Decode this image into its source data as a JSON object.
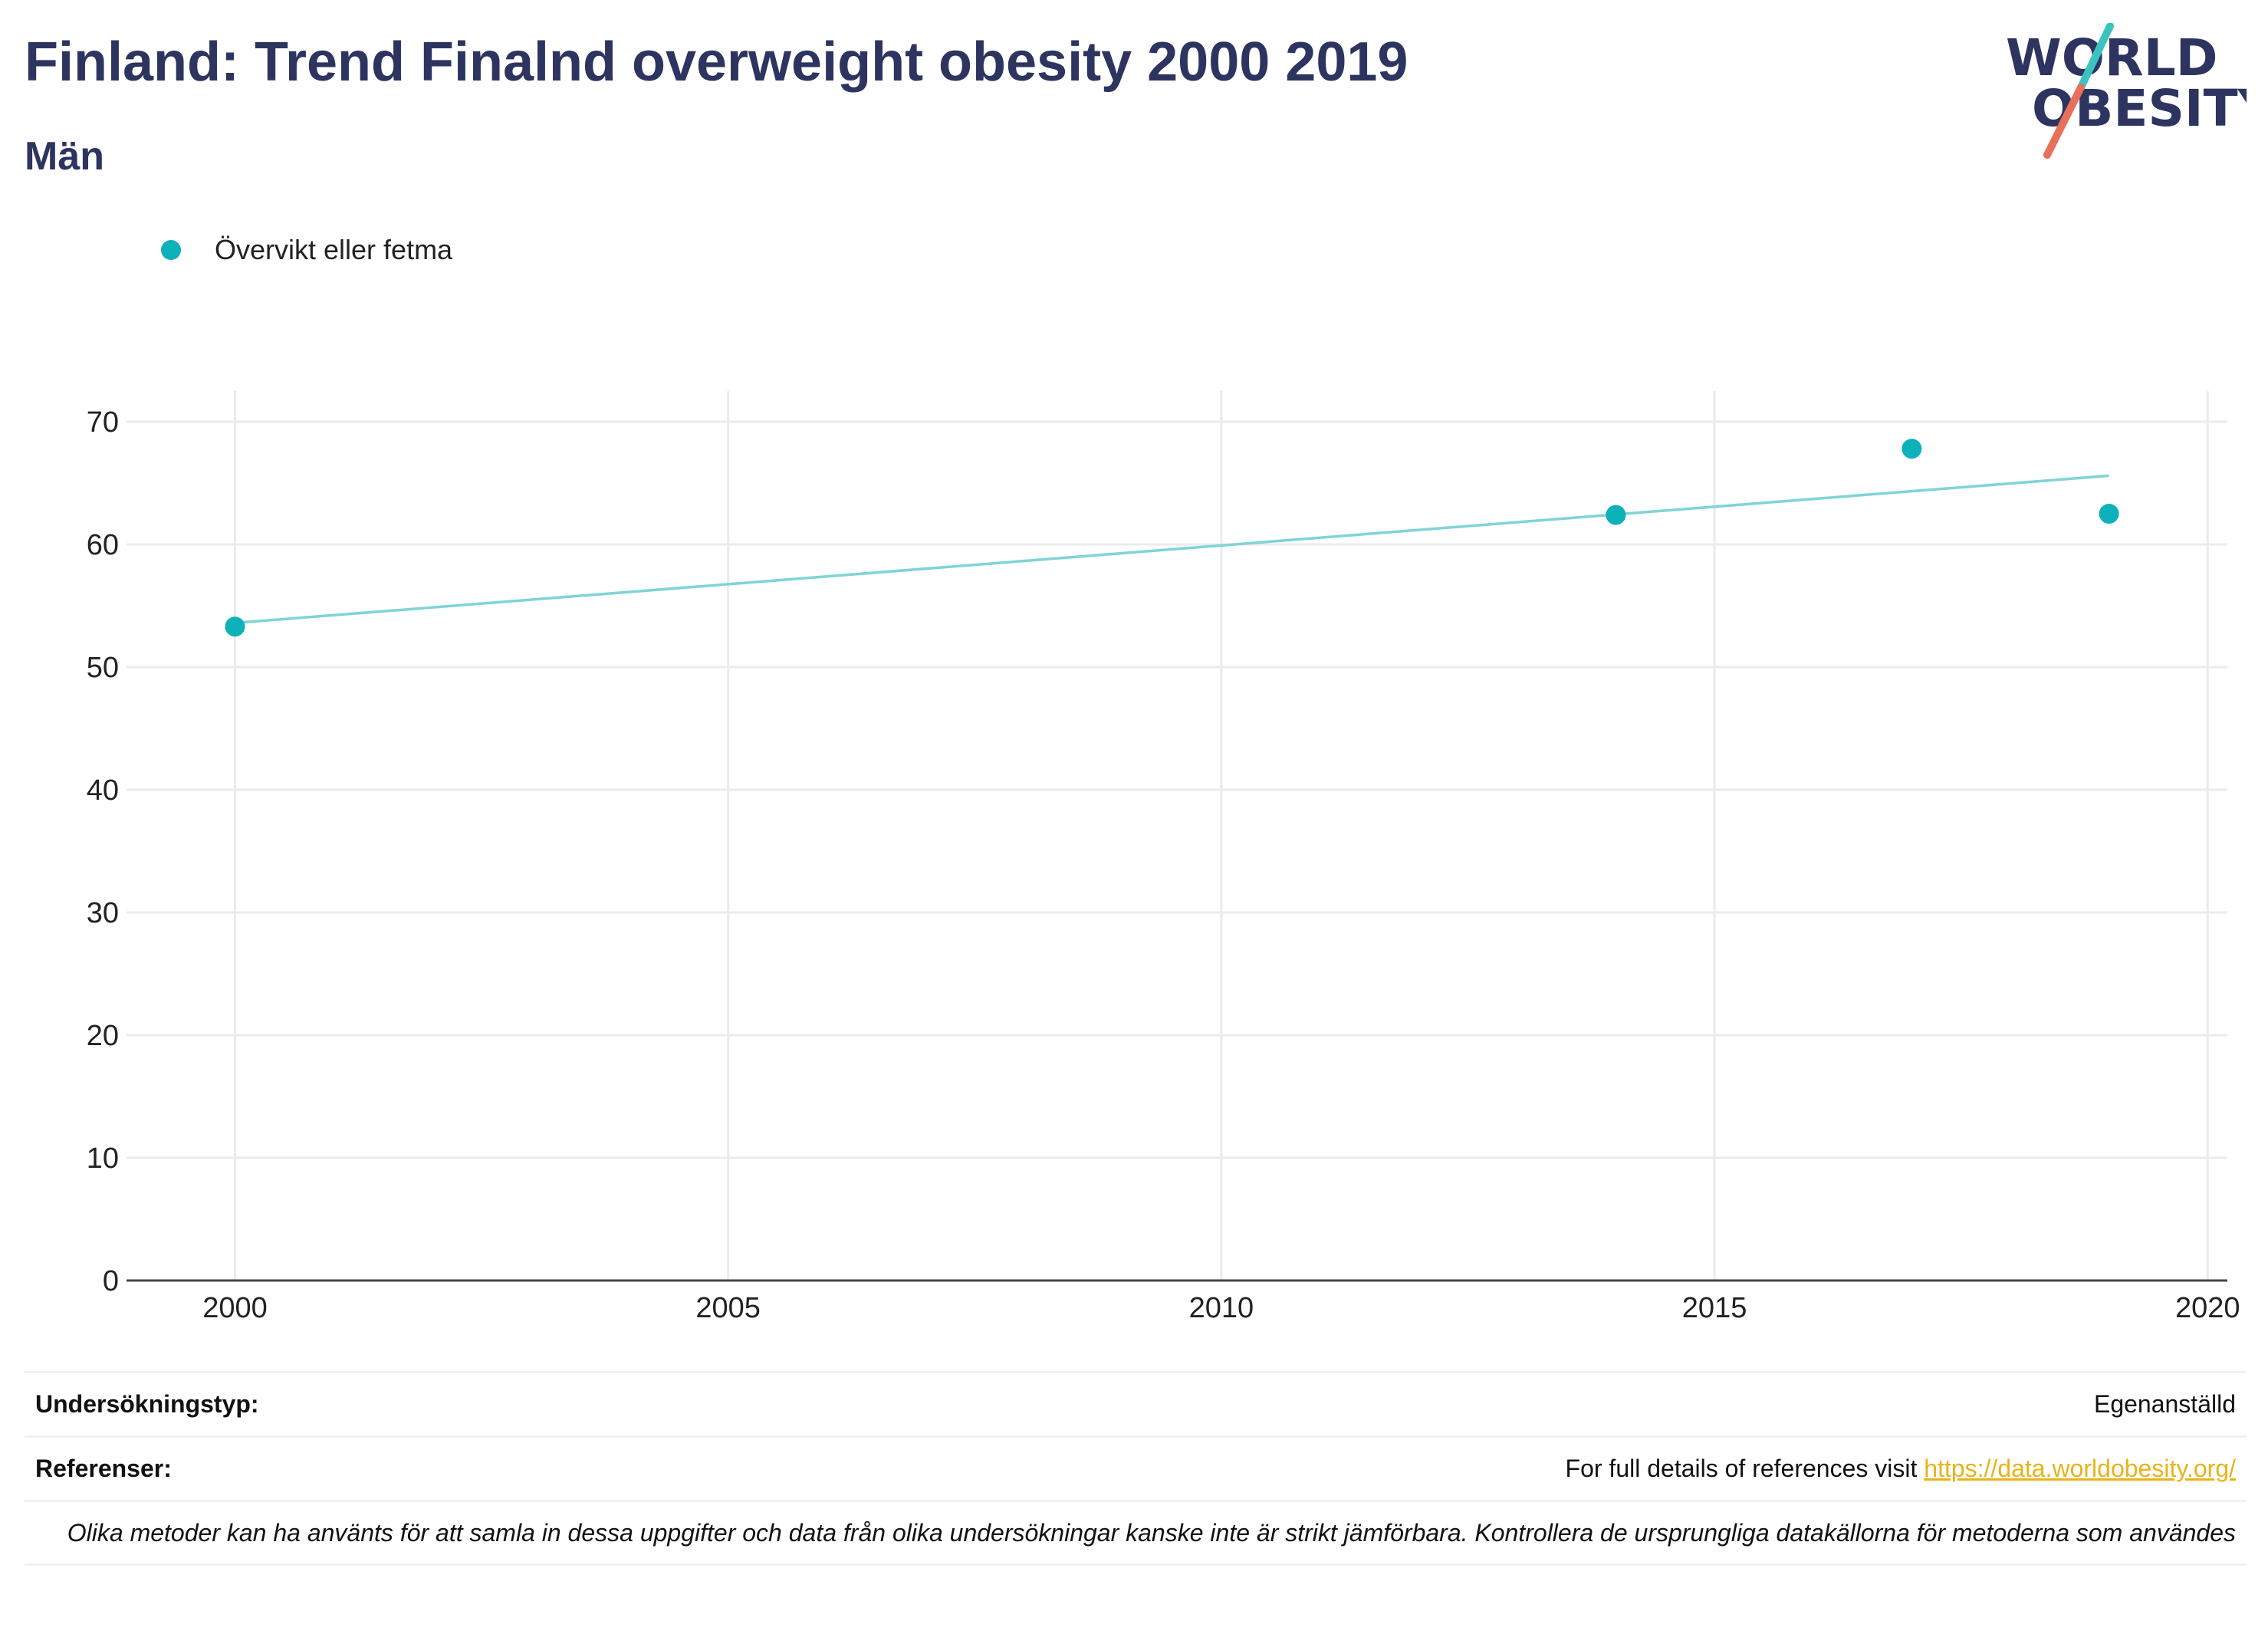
{
  "header": {
    "title": "Finland: Trend Finalnd overweight obesity 2000 2019",
    "subtitle": "Män"
  },
  "logo": {
    "line1": "WORLD",
    "line2": "OBESITY",
    "text_color": "#2d3460",
    "slash_top_color": "#3cc3c0",
    "slash_bottom_color": "#e8705a"
  },
  "legend": {
    "items": [
      {
        "label": "Övervikt eller fetma",
        "color": "#0db1b9"
      }
    ]
  },
  "chart_data": {
    "type": "scatter",
    "title": "Finland: Trend Finalnd overweight obesity 2000 2019",
    "subtitle": "Män",
    "xlabel": "",
    "ylabel": "",
    "xlim": [
      1998.9,
      2020.2
    ],
    "ylim": [
      0,
      72.5
    ],
    "xticks": [
      2000,
      2005,
      2010,
      2015,
      2020
    ],
    "yticks": [
      0,
      10,
      20,
      30,
      40,
      50,
      60,
      70
    ],
    "grid": true,
    "legend_position": "top-left",
    "series": [
      {
        "name": "Övervikt eller fetma",
        "color": "#0db1b9",
        "points": [
          {
            "x": 2000,
            "y": 53.3
          },
          {
            "x": 2014,
            "y": 62.4
          },
          {
            "x": 2017,
            "y": 67.8
          },
          {
            "x": 2019,
            "y": 62.5
          }
        ]
      }
    ],
    "trendline": {
      "color": "#7fd4d6",
      "x": [
        2000,
        2019
      ],
      "y": [
        53.6,
        65.6
      ]
    }
  },
  "footer": {
    "survey_type_label": "Undersökningstyp:",
    "survey_type_value": "Egenanställd",
    "references_label": "Referenser:",
    "references_text": "For full details of references visit ",
    "references_link": "https://data.worldobesity.org/",
    "note": "Olika metoder kan ha använts för att samla in dessa uppgifter och data från olika undersökningar kanske inte är strikt jämförbara. Kontrollera de ursprungliga datakällorna för metoderna som användes"
  }
}
